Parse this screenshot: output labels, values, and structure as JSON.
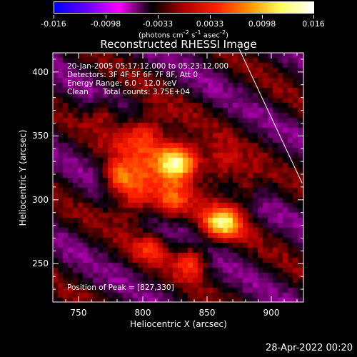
{
  "colorbar": {
    "tick_labels": [
      "-0.016",
      "-0.0098",
      "-0.0033",
      "0.0033",
      "0.0098",
      "0.016"
    ],
    "units_html": "(photons cm<sup>-2</sup> s<sup>-1</sup> asec<sup>-2</sup>)",
    "colors": [
      "#0000ff",
      "#6a00ff",
      "#ff00ff",
      "#000000",
      "#b00000",
      "#ff2000",
      "#ff9000",
      "#ffff60",
      "#ffffff"
    ]
  },
  "chart_data": {
    "type": "heatmap",
    "title": "Reconstructed RHESSI Image",
    "xlabel": "Heliocentric X (arcsec)",
    "ylabel": "Heliocentric Y (arcsec)",
    "xlim": [
      730,
      925
    ],
    "ylim": [
      220,
      415
    ],
    "x_ticks": [
      750,
      800,
      850,
      900
    ],
    "y_ticks": [
      250,
      300,
      350,
      400
    ],
    "colorbar_range": [
      -0.016,
      0.016
    ],
    "peak_position": [
      827,
      330
    ],
    "sources": [
      {
        "x": 827,
        "y": 330,
        "peak": 1.0,
        "sx": 12,
        "sy": 10
      },
      {
        "x": 862,
        "y": 282,
        "peak": 0.72,
        "sx": 11,
        "sy": 9
      },
      {
        "x": 800,
        "y": 350,
        "peak": 0.55,
        "sx": 14,
        "sy": 12
      },
      {
        "x": 793,
        "y": 305,
        "peak": 0.5,
        "sx": 12,
        "sy": 14
      },
      {
        "x": 822,
        "y": 298,
        "peak": 0.42,
        "sx": 10,
        "sy": 10
      },
      {
        "x": 838,
        "y": 252,
        "peak": 0.45,
        "sx": 9,
        "sy": 9
      },
      {
        "x": 780,
        "y": 318,
        "peak": 0.4,
        "sx": 8,
        "sy": 8
      },
      {
        "x": 860,
        "y": 325,
        "peak": 0.35,
        "sx": 10,
        "sy": 12
      },
      {
        "x": 807,
        "y": 262,
        "peak": 0.32,
        "sx": 9,
        "sy": 8
      },
      {
        "x": 880,
        "y": 310,
        "peak": 0.28,
        "sx": 8,
        "sy": 10
      },
      {
        "x": 770,
        "y": 368,
        "peak": 0.25,
        "sx": 8,
        "sy": 8
      }
    ],
    "limb_line": [
      [
        875,
        418
      ],
      [
        924,
        313
      ]
    ]
  },
  "info": {
    "line1": "20-Jan-2005 05:17:12.000 to 05:23:12.000",
    "line2": "Detectors: 3F 4F 5F 6F 7F 8F, Att 0",
    "line3": "Energy Range: 6.0 - 12.0 keV",
    "line4_a": "Clean",
    "line4_b": "Total counts: 3.75E+04",
    "peak_text": "Position of Peak = [827,330]"
  },
  "timestamp": "28-Apr-2022 00:20"
}
